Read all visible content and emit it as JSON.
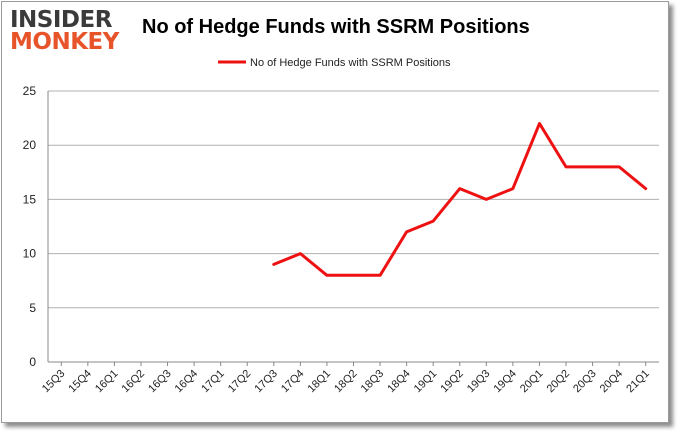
{
  "logo": {
    "line1": "INSIDER",
    "line2": "MONKEY"
  },
  "chart_data": {
    "type": "line",
    "title": "No of Hedge Funds with SSRM Positions",
    "categories": [
      "15Q3",
      "15Q4",
      "16Q1",
      "16Q2",
      "16Q3",
      "16Q4",
      "17Q1",
      "17Q2",
      "17Q3",
      "17Q4",
      "18Q1",
      "18Q2",
      "18Q3",
      "18Q4",
      "19Q1",
      "19Q2",
      "19Q3",
      "19Q4",
      "20Q1",
      "20Q2",
      "20Q3",
      "20Q4",
      "21Q1"
    ],
    "series": [
      {
        "name": "No of Hedge Funds with SSRM Positions",
        "color": "#ee1111",
        "values": [
          null,
          null,
          null,
          null,
          null,
          null,
          null,
          null,
          9,
          10,
          8,
          8,
          8,
          12,
          13,
          16,
          15,
          16,
          22,
          18,
          18,
          18,
          16
        ]
      }
    ],
    "ylim": [
      0,
      25
    ],
    "yticks": [
      0,
      5,
      10,
      15,
      20,
      25
    ],
    "grid": true,
    "legend": "top-center"
  }
}
